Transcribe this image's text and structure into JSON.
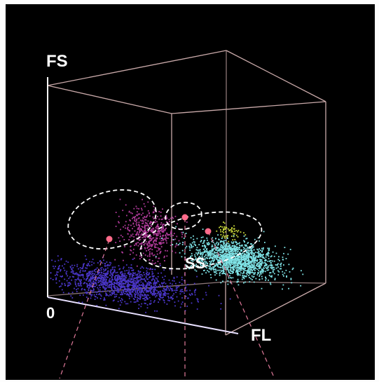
{
  "chart_data": {
    "type": "scatter",
    "projection": "3d",
    "background": "#000000",
    "axes": {
      "vertical": "FS",
      "depth": "FL",
      "origin": "0"
    },
    "ranges": {
      "x": [
        0,
        1
      ],
      "y": [
        0,
        1
      ],
      "z": [
        0,
        1
      ]
    },
    "clusters": [
      {
        "label": "",
        "color": "#b03a9a",
        "center": [
          0.18,
          0.3,
          0.55
        ],
        "spread": [
          0.07,
          0.06,
          0.05
        ],
        "points": 520
      },
      {
        "label": "",
        "color": "#4a36c8",
        "center": [
          0.2,
          0.08,
          0.3
        ],
        "spread": [
          0.16,
          0.035,
          0.12
        ],
        "points": 1400
      },
      {
        "label": "",
        "color": "#c9d63a",
        "center": [
          0.45,
          0.33,
          0.8
        ],
        "spread": [
          0.03,
          0.02,
          0.03
        ],
        "points": 60
      },
      {
        "label": "SS",
        "color": "#7fe3e6",
        "center": [
          0.52,
          0.22,
          0.75
        ],
        "spread": [
          0.11,
          0.04,
          0.07
        ],
        "points": 1600
      }
    ],
    "centroids": [
      {
        "color": "#ff6b8a",
        "position": [
          0.18,
          0.28,
          0.55
        ]
      },
      {
        "color": "#ff6b8a",
        "position": [
          0.45,
          0.32,
          0.8
        ]
      },
      {
        "color": "#ff6b8a",
        "position": [
          0.56,
          0.24,
          0.72
        ]
      }
    ]
  },
  "colors": {
    "background": "#000000",
    "box": "#c9a9a9",
    "front_axis": "#ffffff",
    "ellipse": "#ffffff",
    "projection": "#e07a9a"
  }
}
